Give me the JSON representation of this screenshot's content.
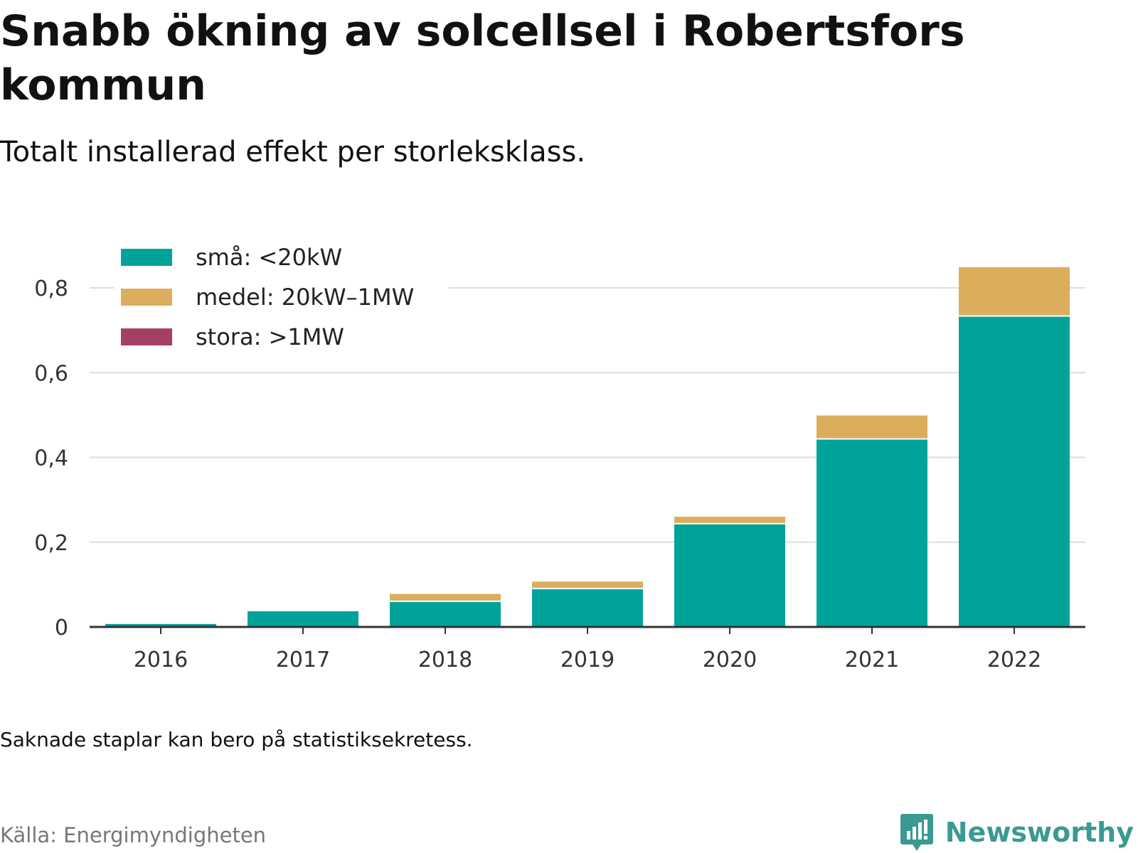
{
  "title": "Snabb ökning av solcellsel i Robertsfors kommun",
  "subtitle": "Totalt installerad effekt per storleksklass.",
  "note": "Saknade staplar kan bero på statistiksekretess.",
  "source": "Källa: Energimyndigheten",
  "brand": {
    "name": "Newsworthy",
    "icon": "newsworthy-logo-icon",
    "color": "#3a9a92"
  },
  "chart_data": {
    "type": "bar",
    "stacked": true,
    "categories": [
      "2016",
      "2017",
      "2018",
      "2019",
      "2020",
      "2021",
      "2022"
    ],
    "series": [
      {
        "name": "små: <20kW",
        "color": "#00a39a",
        "values": [
          0.007,
          0.037,
          0.059,
          0.089,
          0.242,
          0.442,
          0.732
        ]
      },
      {
        "name": "medel: 20kW–1MW",
        "color": "#dbad5d",
        "values": [
          0,
          0,
          0.019,
          0.018,
          0.018,
          0.057,
          0.117
        ]
      },
      {
        "name": "stora: >1MW",
        "color": "#a63f66",
        "values": [
          0,
          0,
          0,
          0,
          0,
          0,
          0
        ]
      }
    ],
    "yticks": [
      0,
      0.2,
      0.4,
      0.6,
      0.8
    ],
    "ytick_labels": [
      "0",
      "0,2",
      "0,4",
      "0,6",
      "0,8"
    ],
    "ylim": [
      0,
      0.85
    ],
    "xlabel": "",
    "ylabel": "",
    "grid": true,
    "legend_position": "top-left"
  }
}
